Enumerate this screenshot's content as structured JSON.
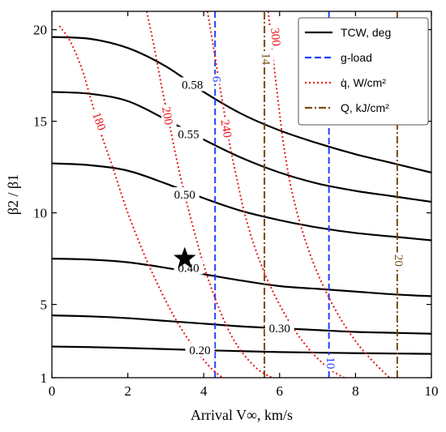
{
  "chart_data": {
    "type": "line",
    "xlabel": "Arrival V∞, km/s",
    "ylabel": "β2 / β1",
    "xlim": [
      0,
      10
    ],
    "ylim": [
      1,
      21
    ],
    "x_ticks": [
      0,
      2,
      4,
      6,
      8,
      10
    ],
    "y_ticks": [
      1,
      5,
      10,
      15,
      20
    ],
    "x_tick_labels": [
      "0",
      "2",
      "4",
      "6",
      "8",
      "10"
    ],
    "y_tick_labels": [
      "1",
      "5",
      "10",
      "15",
      "20"
    ],
    "grid": false,
    "legend_position": "top-right",
    "legend": [
      {
        "label": "TCW, deg",
        "style": "solid",
        "color": "#000000"
      },
      {
        "label": "g-load",
        "style": "dashed",
        "color": "#1f3fff"
      },
      {
        "label": "q̇, W/cm²",
        "style": "dotted",
        "color": "#e8141b"
      },
      {
        "label": "Q, kJ/cm²",
        "style": "dashdot",
        "color": "#7a4a10"
      }
    ],
    "series": [
      {
        "group": "TCW",
        "label": "0.58",
        "points": [
          [
            0,
            19.6
          ],
          [
            1,
            19.5
          ],
          [
            2,
            19.0
          ],
          [
            3,
            18.0
          ],
          [
            4,
            16.6
          ],
          [
            5,
            15.4
          ],
          [
            6,
            14.5
          ],
          [
            7,
            13.8
          ],
          [
            8,
            13.2
          ],
          [
            9,
            12.7
          ],
          [
            10,
            12.2
          ]
        ]
      },
      {
        "group": "TCW",
        "label": "0.55",
        "points": [
          [
            0,
            16.6
          ],
          [
            1,
            16.5
          ],
          [
            2,
            16.1
          ],
          [
            3,
            15.1
          ],
          [
            4,
            14.0
          ],
          [
            5,
            13.0
          ],
          [
            6,
            12.2
          ],
          [
            7,
            11.6
          ],
          [
            8,
            11.2
          ],
          [
            9,
            10.9
          ],
          [
            10,
            10.6
          ]
        ]
      },
      {
        "group": "TCW",
        "label": "0.50",
        "points": [
          [
            0,
            12.7
          ],
          [
            1,
            12.6
          ],
          [
            2,
            12.3
          ],
          [
            3,
            11.6
          ],
          [
            4,
            10.8
          ],
          [
            5,
            10.1
          ],
          [
            6,
            9.6
          ],
          [
            7,
            9.2
          ],
          [
            8,
            8.9
          ],
          [
            9,
            8.7
          ],
          [
            10,
            8.5
          ]
        ]
      },
      {
        "group": "TCW",
        "label": "0.40",
        "points": [
          [
            0,
            7.5
          ],
          [
            1,
            7.45
          ],
          [
            2,
            7.3
          ],
          [
            3,
            7.0
          ],
          [
            4,
            6.65
          ],
          [
            5,
            6.3
          ],
          [
            6,
            6.0
          ],
          [
            7,
            5.85
          ],
          [
            8,
            5.7
          ],
          [
            9,
            5.55
          ],
          [
            10,
            5.45
          ]
        ]
      },
      {
        "group": "TCW",
        "label": "0.30",
        "points": [
          [
            0,
            4.4
          ],
          [
            1,
            4.35
          ],
          [
            2,
            4.25
          ],
          [
            3,
            4.1
          ],
          [
            4,
            3.95
          ],
          [
            5,
            3.8
          ],
          [
            6,
            3.7
          ],
          [
            7,
            3.6
          ],
          [
            8,
            3.5
          ],
          [
            9,
            3.45
          ],
          [
            10,
            3.4
          ]
        ]
      },
      {
        "group": "TCW",
        "label": "0.20",
        "points": [
          [
            0,
            2.7
          ],
          [
            1,
            2.67
          ],
          [
            2,
            2.62
          ],
          [
            3,
            2.56
          ],
          [
            4,
            2.5
          ],
          [
            5,
            2.45
          ],
          [
            6,
            2.4
          ],
          [
            7,
            2.37
          ],
          [
            8,
            2.34
          ],
          [
            9,
            2.32
          ],
          [
            10,
            2.3
          ]
        ]
      },
      {
        "group": "g-load",
        "label": "6",
        "points": [
          [
            4.3,
            1
          ],
          [
            4.3,
            21
          ]
        ]
      },
      {
        "group": "g-load",
        "label": "10",
        "points": [
          [
            7.3,
            1
          ],
          [
            7.3,
            21
          ]
        ]
      },
      {
        "group": "heat-rate",
        "label": "180",
        "points": [
          [
            0.2,
            20.2
          ],
          [
            0.5,
            19.3
          ],
          [
            0.8,
            17.8
          ],
          [
            1.0,
            16.4
          ],
          [
            1.3,
            14.3
          ],
          [
            1.6,
            12.5
          ],
          [
            2.0,
            10.0
          ],
          [
            2.5,
            7.4
          ],
          [
            3.0,
            5.2
          ],
          [
            3.4,
            3.7
          ],
          [
            3.8,
            2.5
          ],
          [
            4.2,
            1.5
          ],
          [
            4.5,
            1.0
          ]
        ]
      },
      {
        "group": "heat-rate",
        "label": "200",
        "points": [
          [
            2.5,
            21
          ],
          [
            2.7,
            19.0
          ],
          [
            2.9,
            16.8
          ],
          [
            3.1,
            14.8
          ],
          [
            3.3,
            12.8
          ],
          [
            3.5,
            11.0
          ],
          [
            3.8,
            8.6
          ],
          [
            4.1,
            6.5
          ],
          [
            4.5,
            4.3
          ],
          [
            4.9,
            2.7
          ],
          [
            5.4,
            1.5
          ],
          [
            5.8,
            1.0
          ]
        ]
      },
      {
        "group": "heat-rate",
        "label": "240",
        "points": [
          [
            4.1,
            21
          ],
          [
            4.3,
            18.5
          ],
          [
            4.5,
            16.0
          ],
          [
            4.7,
            13.6
          ],
          [
            4.9,
            11.6
          ],
          [
            5.1,
            9.8
          ],
          [
            5.4,
            7.8
          ],
          [
            5.8,
            5.8
          ],
          [
            6.3,
            3.9
          ],
          [
            6.8,
            2.5
          ],
          [
            7.3,
            1.5
          ],
          [
            7.7,
            1.0
          ]
        ]
      },
      {
        "group": "heat-rate",
        "label": "300",
        "points": [
          [
            5.7,
            21
          ],
          [
            5.8,
            19.0
          ],
          [
            5.95,
            16.3
          ],
          [
            6.1,
            13.8
          ],
          [
            6.3,
            11.4
          ],
          [
            6.6,
            9.0
          ],
          [
            7.0,
            6.7
          ],
          [
            7.5,
            4.6
          ],
          [
            8.0,
            3.0
          ],
          [
            8.5,
            1.8
          ],
          [
            8.9,
            1.0
          ]
        ]
      },
      {
        "group": "heat-load",
        "label": "14",
        "points": [
          [
            5.6,
            1
          ],
          [
            5.6,
            21
          ]
        ]
      },
      {
        "group": "heat-load",
        "label": "20",
        "points": [
          [
            9.1,
            1
          ],
          [
            9.1,
            21
          ]
        ]
      }
    ],
    "marker": {
      "shape": "star",
      "x": 3.5,
      "y": 7.5,
      "color": "#000000"
    },
    "contour_labels": [
      {
        "text": "0.58",
        "x": 3.7,
        "y": 17.0,
        "color": "#000000"
      },
      {
        "text": "0.55",
        "x": 3.6,
        "y": 14.3,
        "color": "#000000"
      },
      {
        "text": "0.50",
        "x": 3.5,
        "y": 11.0,
        "color": "#000000"
      },
      {
        "text": "0.40",
        "x": 3.6,
        "y": 7.0,
        "color": "#000000"
      },
      {
        "text": "0.30",
        "x": 6.0,
        "y": 3.7,
        "color": "#000000"
      },
      {
        "text": "0.20",
        "x": 3.9,
        "y": 2.5,
        "color": "#000000"
      },
      {
        "text": "6",
        "x": 4.35,
        "y": 17.3,
        "color": "#1f3fff",
        "rotate": 90
      },
      {
        "text": "10",
        "x": 7.35,
        "y": 1.8,
        "color": "#1f3fff",
        "rotate": 90
      },
      {
        "text": "180",
        "x": 1.25,
        "y": 15.0,
        "color": "#e8141b",
        "rotate": 70
      },
      {
        "text": "200",
        "x": 3.05,
        "y": 15.3,
        "color": "#e8141b",
        "rotate": 80
      },
      {
        "text": "240",
        "x": 4.6,
        "y": 14.6,
        "color": "#e8141b",
        "rotate": 80
      },
      {
        "text": "300",
        "x": 5.9,
        "y": 19.6,
        "color": "#e8141b",
        "rotate": 85
      },
      {
        "text": "14",
        "x": 5.65,
        "y": 18.4,
        "color": "#7a4a10",
        "rotate": 90
      },
      {
        "text": "20",
        "x": 9.15,
        "y": 7.4,
        "color": "#7a4a10",
        "rotate": 90
      }
    ],
    "colors": {
      "tcw": "#000000",
      "gload": "#1f3fff",
      "heat_rate": "#e8141b",
      "heat_load": "#7a4a10"
    }
  }
}
